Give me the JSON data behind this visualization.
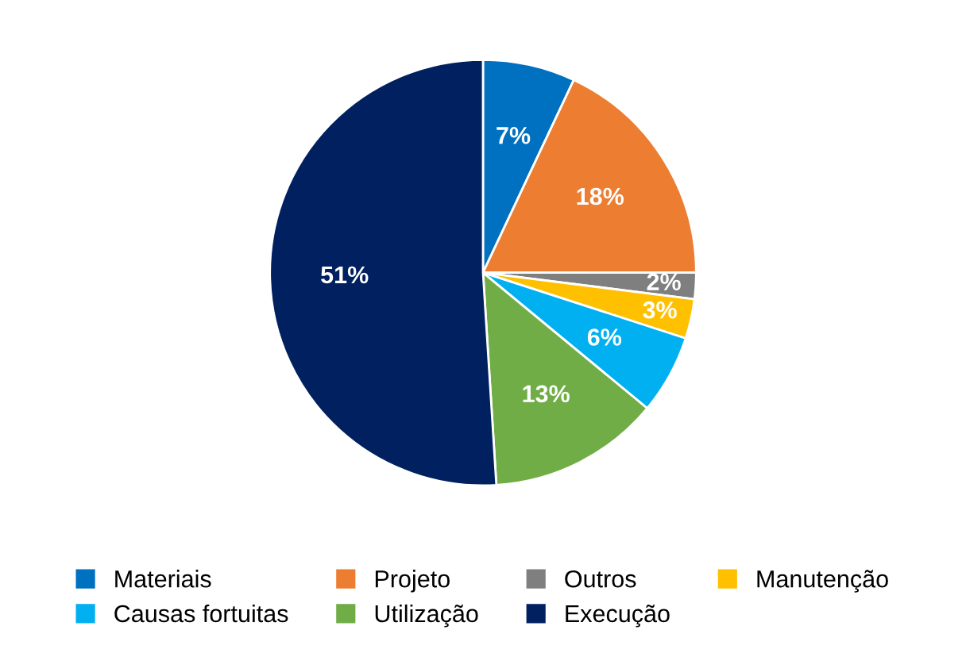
{
  "chart_data": {
    "type": "pie",
    "categories": [
      "Materiais",
      "Projeto",
      "Outros",
      "Manutenção",
      "Causas fortuitas",
      "Utilização",
      "Execução"
    ],
    "values": [
      7,
      18,
      2,
      3,
      6,
      13,
      51
    ],
    "value_labels": [
      "7%",
      "18%",
      "2%",
      "3%",
      "6%",
      "13%",
      "51%"
    ],
    "colors": [
      "#0070c0",
      "#ed7d31",
      "#7f7f7f",
      "#ffc000",
      "#00b0f0",
      "#70ad47",
      "#002060"
    ],
    "legend": "bottom"
  }
}
